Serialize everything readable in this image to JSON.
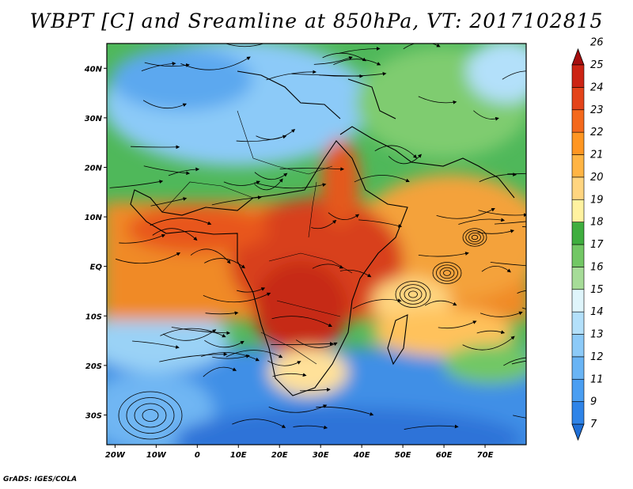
{
  "title": "WBPT [C] and Sreamline at 850hPa, VT: 2017102815",
  "footer": "GrADS: IGES/COLA",
  "map": {
    "lon_range": [
      -22,
      80
    ],
    "lat_range": [
      -36,
      45
    ],
    "lon_ticks": [
      {
        "value": -20,
        "label": "20W"
      },
      {
        "value": -10,
        "label": "10W"
      },
      {
        "value": 0,
        "label": "0"
      },
      {
        "value": 10,
        "label": "10E"
      },
      {
        "value": 20,
        "label": "20E"
      },
      {
        "value": 30,
        "label": "30E"
      },
      {
        "value": 40,
        "label": "40E"
      },
      {
        "value": 50,
        "label": "50E"
      },
      {
        "value": 60,
        "label": "60E"
      },
      {
        "value": 70,
        "label": "70E"
      }
    ],
    "lat_ticks": [
      {
        "value": 40,
        "label": "40N"
      },
      {
        "value": 30,
        "label": "30N"
      },
      {
        "value": 20,
        "label": "20N"
      },
      {
        "value": 10,
        "label": "10N"
      },
      {
        "value": 0,
        "label": "EQ"
      },
      {
        "value": -10,
        "label": "10S"
      },
      {
        "value": -20,
        "label": "20S"
      },
      {
        "value": -30,
        "label": "30S"
      }
    ]
  },
  "colorbar": {
    "levels": [
      "7",
      "9",
      "11",
      "12",
      "13",
      "14",
      "15",
      "16",
      "17",
      "18",
      "19",
      "20",
      "21",
      "22",
      "23",
      "24",
      "25",
      "26"
    ],
    "colors": [
      "#1f6fd6",
      "#2f84e8",
      "#4a9ef2",
      "#69b4f5",
      "#8ccaf8",
      "#b3e0fa",
      "#dff5fb",
      "#a6dc98",
      "#72c765",
      "#3fae3f",
      "#fff2a0",
      "#ffd580",
      "#ffb444",
      "#ff9622",
      "#f4691c",
      "#e4441a",
      "#cc2414",
      "#a60f0f"
    ]
  }
}
